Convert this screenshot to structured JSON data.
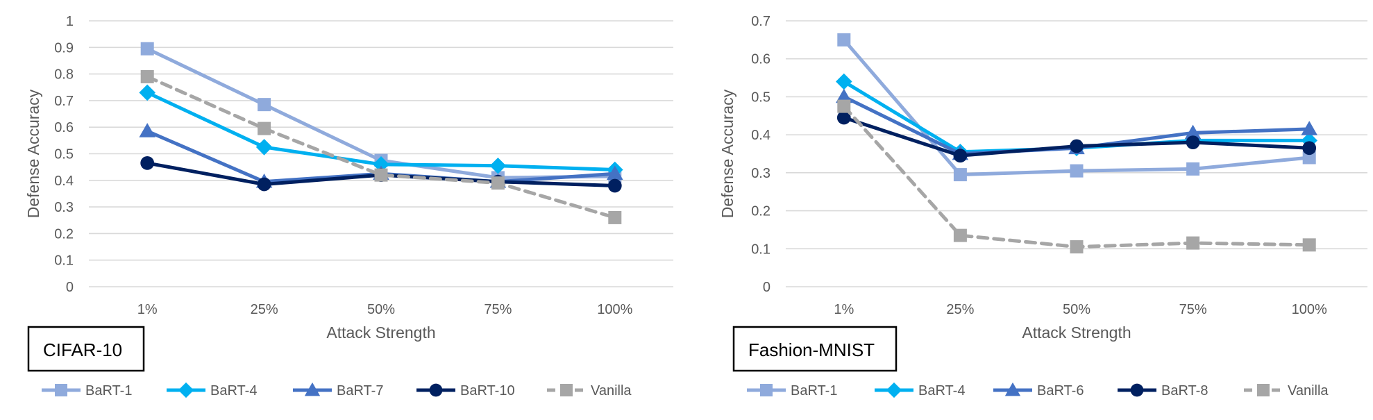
{
  "chart_data": [
    {
      "type": "line",
      "panel_label": "CIFAR-10",
      "xlabel": "Attack Strength",
      "ylabel": "Defense Accuracy",
      "categories": [
        "1%",
        "25%",
        "50%",
        "75%",
        "100%"
      ],
      "ylim": [
        0,
        1
      ],
      "yticks": [
        "0",
        "0.1",
        "0.2",
        "0.3",
        "0.4",
        "0.5",
        "0.6",
        "0.7",
        "0.8",
        "0.9",
        "1"
      ],
      "grid": true,
      "legend_position": "bottom",
      "series": [
        {
          "name": "BaRT-1",
          "values": [
            0.895,
            0.685,
            0.475,
            0.41,
            0.415
          ],
          "color": "#8faadc",
          "marker": "square",
          "dashed": false
        },
        {
          "name": "BaRT-4",
          "values": [
            0.73,
            0.525,
            0.46,
            0.455,
            0.44
          ],
          "color": "#00b0f0",
          "marker": "diamond",
          "dashed": false
        },
        {
          "name": "BaRT-7",
          "values": [
            0.585,
            0.395,
            0.425,
            0.395,
            0.425
          ],
          "color": "#4472c4",
          "marker": "triangle",
          "dashed": false
        },
        {
          "name": "BaRT-10",
          "values": [
            0.465,
            0.385,
            0.42,
            0.395,
            0.38
          ],
          "color": "#002060",
          "marker": "circle",
          "dashed": false
        },
        {
          "name": "Vanilla",
          "values": [
            0.79,
            0.595,
            0.42,
            0.39,
            0.26
          ],
          "color": "#a6a6a6",
          "marker": "square",
          "dashed": true
        }
      ]
    },
    {
      "type": "line",
      "panel_label": "Fashion-MNIST",
      "xlabel": "Attack Strength",
      "ylabel": "Defense Accuracy",
      "categories": [
        "1%",
        "25%",
        "50%",
        "75%",
        "100%"
      ],
      "ylim": [
        0,
        0.7
      ],
      "yticks": [
        "0",
        "0.1",
        "0.2",
        "0.3",
        "0.4",
        "0.5",
        "0.6",
        "0.7"
      ],
      "grid": true,
      "legend_position": "bottom",
      "series": [
        {
          "name": "BaRT-1",
          "values": [
            0.65,
            0.295,
            0.305,
            0.31,
            0.34
          ],
          "color": "#8faadc",
          "marker": "square",
          "dashed": false
        },
        {
          "name": "BaRT-4",
          "values": [
            0.54,
            0.355,
            0.365,
            0.385,
            0.385
          ],
          "color": "#00b0f0",
          "marker": "diamond",
          "dashed": false
        },
        {
          "name": "BaRT-6",
          "values": [
            0.5,
            0.35,
            0.365,
            0.405,
            0.415
          ],
          "color": "#4472c4",
          "marker": "triangle",
          "dashed": false
        },
        {
          "name": "BaRT-8",
          "values": [
            0.445,
            0.345,
            0.37,
            0.38,
            0.365
          ],
          "color": "#002060",
          "marker": "circle",
          "dashed": false
        },
        {
          "name": "Vanilla",
          "values": [
            0.475,
            0.135,
            0.105,
            0.115,
            0.11
          ],
          "color": "#a6a6a6",
          "marker": "square",
          "dashed": true
        }
      ]
    }
  ]
}
